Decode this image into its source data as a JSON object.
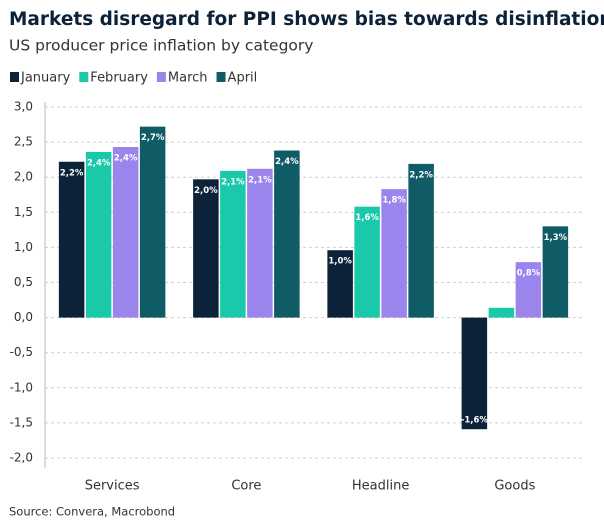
{
  "chart_data": {
    "type": "bar",
    "title": "Markets disregard for PPI shows bias towards disinflation",
    "subtitle": "US producer price inflation by category",
    "source": "Source: Convera, Macrobond",
    "categories": [
      "Services",
      "Core",
      "Headline",
      "Goods"
    ],
    "series": [
      {
        "name": "January",
        "color": "#0b2239",
        "values": [
          2.22,
          1.97,
          0.96,
          -1.59
        ],
        "value_labels": [
          "2,2%",
          "2,0%",
          "1,0%",
          "-1,6%"
        ]
      },
      {
        "name": "February",
        "color": "#1ac8aa",
        "values": [
          2.36,
          2.09,
          1.58,
          0.14
        ],
        "value_labels": [
          "2,4%",
          "2,1%",
          "1,6%",
          null
        ]
      },
      {
        "name": "March",
        "color": "#9b85ec",
        "values": [
          2.43,
          2.12,
          1.83,
          0.79
        ],
        "value_labels": [
          "2,4%",
          "2,1%",
          "1,8%",
          "0,8%"
        ]
      },
      {
        "name": "April",
        "color": "#0f5b66",
        "values": [
          2.72,
          2.38,
          2.19,
          1.3
        ],
        "value_labels": [
          "2,7%",
          "2,4%",
          "2,2%",
          "1,3%"
        ]
      }
    ],
    "ylim": [
      -2.0,
      3.0
    ],
    "yticks": [
      {
        "value": 3.0,
        "label": "3,0"
      },
      {
        "value": 2.5,
        "label": "2,5"
      },
      {
        "value": 2.0,
        "label": "2,0"
      },
      {
        "value": 1.5,
        "label": "1,5"
      },
      {
        "value": 1.0,
        "label": "1,0"
      },
      {
        "value": 0.5,
        "label": "0,5"
      },
      {
        "value": 0.0,
        "label": "0,0"
      },
      {
        "value": -0.5,
        "label": "-0,5"
      },
      {
        "value": -1.0,
        "label": "-1,0"
      },
      {
        "value": -1.5,
        "label": "-1,5"
      },
      {
        "value": -2.0,
        "label": "-2,0"
      }
    ],
    "grid": true
  }
}
